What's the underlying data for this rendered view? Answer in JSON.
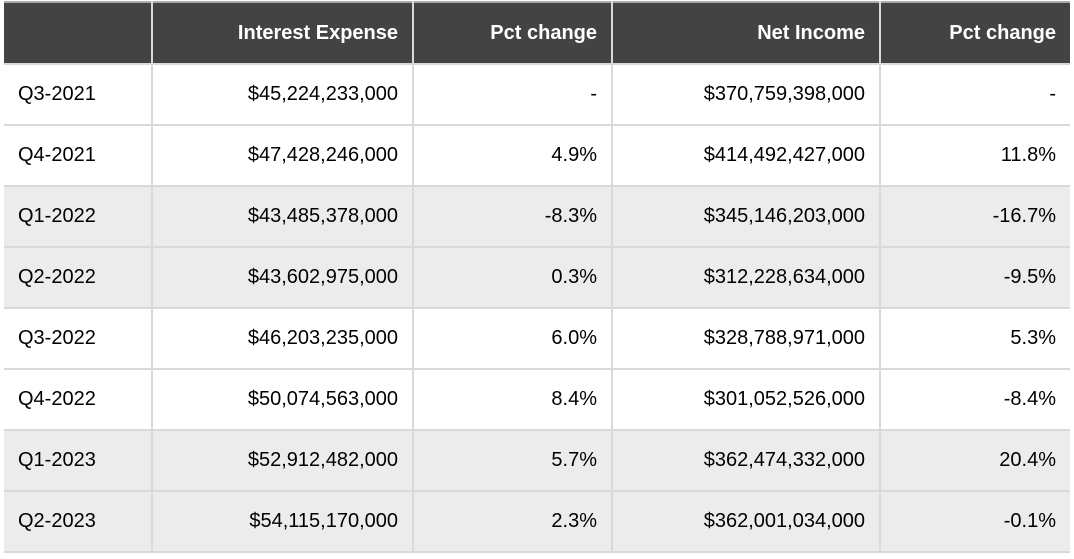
{
  "chart_data": {
    "type": "table",
    "title": "",
    "columns": [
      "",
      "Interest Expense",
      "Pct change",
      "Net Income",
      "Pct change"
    ],
    "rows": [
      [
        "Q3-2021",
        "$45,224,233,000",
        "-",
        "$370,759,398,000",
        "-"
      ],
      [
        "Q4-2021",
        "$47,428,246,000",
        "4.9%",
        "$414,492,427,000",
        "11.8%"
      ],
      [
        "Q1-2022",
        "$43,485,378,000",
        "-8.3%",
        "$345,146,203,000",
        "-16.7%"
      ],
      [
        "Q2-2022",
        "$43,602,975,000",
        "0.3%",
        "$312,228,634,000",
        "-9.5%"
      ],
      [
        "Q3-2022",
        "$46,203,235,000",
        "6.0%",
        "$328,788,971,000",
        "5.3%"
      ],
      [
        "Q4-2022",
        "$50,074,563,000",
        "8.4%",
        "$301,052,526,000",
        "-8.4%"
      ],
      [
        "Q1-2023",
        "$52,912,482,000",
        "5.7%",
        "$362,474,332,000",
        "20.4%"
      ],
      [
        "Q2-2023",
        "$54,115,170,000",
        "2.3%",
        "$362,001,034,000",
        "-0.1%"
      ]
    ],
    "shaded_row_indices": [
      2,
      3,
      6,
      7
    ],
    "layout_hints": {
      "first_column_align": "left",
      "other_columns_align": "right",
      "grid": true,
      "header_style": "dark"
    }
  },
  "colors": {
    "header_bg": "#434343",
    "header_text": "#ffffff",
    "row_bg_white": "#ffffff",
    "row_bg_shaded": "#ececec",
    "cell_border": "#d9d9d9",
    "table_top_border": "#ababab",
    "body_text": "#000000"
  }
}
